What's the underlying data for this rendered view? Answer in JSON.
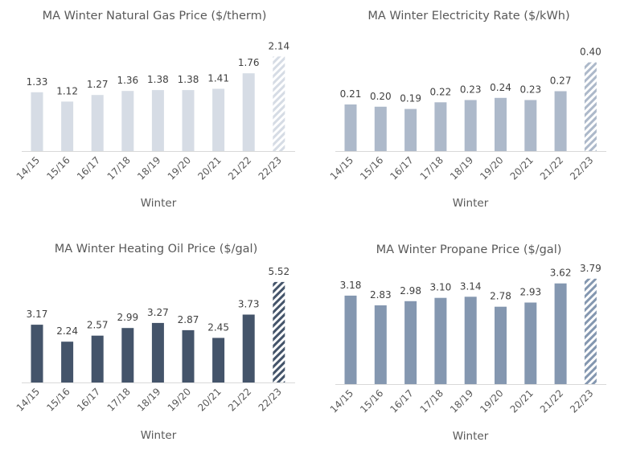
{
  "chart_data": [
    {
      "type": "bar",
      "title": "MA Winter Natural Gas Price ($/therm)",
      "xlabel": "Winter",
      "ylabel": "",
      "categories": [
        "14/15",
        "15/16",
        "16/17",
        "17/18",
        "18/19",
        "19/20",
        "20/21",
        "21/22",
        "22/23"
      ],
      "values": [
        1.33,
        1.12,
        1.27,
        1.36,
        1.38,
        1.38,
        1.41,
        1.76,
        2.14
      ],
      "labels": [
        "1.33",
        "1.12",
        "1.27",
        "1.36",
        "1.38",
        "1.38",
        "1.41",
        "1.76",
        "2.14"
      ],
      "projected": [
        false,
        false,
        false,
        false,
        false,
        false,
        false,
        false,
        true
      ],
      "color": "#D6DCE5",
      "grid": false,
      "ylim": [
        0,
        2.5
      ]
    },
    {
      "type": "bar",
      "title": "MA  Winter Electricity Rate ($/kWh)",
      "xlabel": "Winter",
      "ylabel": "",
      "categories": [
        "14/15",
        "15/16",
        "16/17",
        "17/18",
        "18/19",
        "19/20",
        "20/21",
        "21/22",
        "22/23"
      ],
      "values": [
        0.21,
        0.2,
        0.19,
        0.22,
        0.23,
        0.24,
        0.23,
        0.27,
        0.4
      ],
      "labels": [
        "0.21",
        "0.20",
        "0.19",
        "0.22",
        "0.23",
        "0.24",
        "0.23",
        "0.27",
        "0.40"
      ],
      "projected": [
        false,
        false,
        false,
        false,
        false,
        false,
        false,
        false,
        true
      ],
      "color": "#ADB9CA",
      "grid": false,
      "ylim": [
        0,
        0.5
      ]
    },
    {
      "type": "bar",
      "title": "MA Winter Heating Oil Price ($/gal)",
      "xlabel": "Winter",
      "ylabel": "",
      "categories": [
        "14/15",
        "15/16",
        "16/17",
        "17/18",
        "18/19",
        "19/20",
        "20/21",
        "21/22",
        "22/23"
      ],
      "values": [
        3.17,
        2.24,
        2.57,
        2.99,
        3.27,
        2.87,
        2.45,
        3.73,
        5.52
      ],
      "labels": [
        "3.17",
        "2.24",
        "2.57",
        "2.99",
        "3.27",
        "2.87",
        "2.45",
        "3.73",
        "5.52"
      ],
      "projected": [
        false,
        false,
        false,
        false,
        false,
        false,
        false,
        false,
        true
      ],
      "color": "#44546A",
      "grid": false,
      "ylim": [
        0,
        6
      ]
    },
    {
      "type": "bar",
      "title": "MA Winter Propane Price ($/gal)",
      "xlabel": "Winter",
      "ylabel": "",
      "categories": [
        "14/15",
        "15/16",
        "16/17",
        "17/18",
        "18/19",
        "19/20",
        "20/21",
        "21/22",
        "22/23"
      ],
      "values": [
        3.18,
        2.83,
        2.98,
        3.1,
        3.14,
        2.78,
        2.93,
        3.62,
        3.79
      ],
      "labels": [
        "3.18",
        "2.83",
        "2.98",
        "3.10",
        "3.14",
        "2.78",
        "2.93",
        "3.62",
        "3.79"
      ],
      "projected": [
        false,
        false,
        false,
        false,
        false,
        false,
        false,
        false,
        true
      ],
      "color": "#8497B0",
      "grid": false,
      "ylim": [
        0,
        4
      ]
    }
  ]
}
